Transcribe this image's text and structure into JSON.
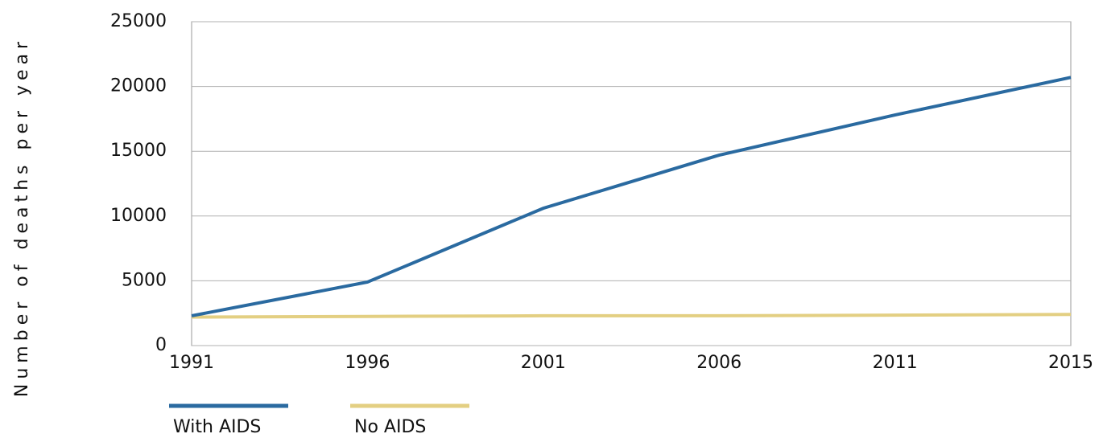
{
  "chart_data": {
    "type": "line",
    "y_label": "Number of deaths per year",
    "categories": [
      "1991",
      "1996",
      "2001",
      "2006",
      "2011",
      "2015"
    ],
    "series": [
      {
        "name": "With AIDS",
        "color": "#2a6aa0",
        "values": [
          2300,
          4900,
          10600,
          14700,
          17800,
          20700
        ]
      },
      {
        "name": "No AIDS",
        "color": "#e3cf82",
        "values": [
          2200,
          2250,
          2300,
          2300,
          2350,
          2400
        ]
      }
    ],
    "ylim": [
      0,
      25000
    ],
    "yticks": [
      0,
      5000,
      10000,
      15000,
      20000,
      25000
    ],
    "grid": true
  }
}
